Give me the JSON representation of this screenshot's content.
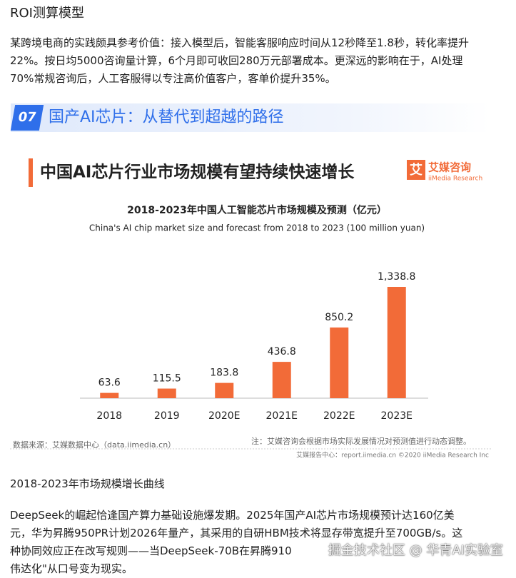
{
  "header": {
    "title": "ROI测算模型"
  },
  "paragraph1": {
    "lines": [
      "某跨境电商的实践颇具参考价值：接入模型后，智能客服响应时间从12秒降至1.8秒，转化率提升",
      "22%。按日均5000咨询量计算，6个月即可收回280万元部署成本。更深远的影响在于，AI处理",
      "70%常规咨询后，人工客服得以专注高价值客户，客单价提升35%。"
    ]
  },
  "section": {
    "number": "07",
    "title": "国产AI芯片：从替代到超越的路径"
  },
  "figure": {
    "headline": "中国AI芯片行业市场规模有望持续快速增长",
    "logo": "艾",
    "brand": "艾媒咨询",
    "brand_en": "iiMedia Research",
    "source": "数据来源：艾媒数据中心（data.iimedia.cn）",
    "note": "注：艾媒咨询会根据市场实际发展情况对预测值进行动态调整。",
    "footer": "艾媒报告中心：report.iimedia.cn   ©2020  iiMedia Research  Inc",
    "chart_data": {
      "type": "bar",
      "title": "2018-2023年中国人工智能芯片市场规模及预测（亿元）",
      "subtitle": "China's  AI chip market size and forecast from 2018 to 2023 (100 million yuan)",
      "categories": [
        "2018",
        "2019",
        "2020E",
        "2021E",
        "2022E",
        "2023E"
      ],
      "values": [
        63.6,
        115.5,
        183.8,
        436.8,
        850.2,
        1338.8
      ],
      "value_labels": [
        "63.6",
        "115.5",
        "183.8",
        "436.8",
        "850.2",
        "1,338.8"
      ],
      "color": "#f26b38"
    }
  },
  "caption": "2018-2023年市场规模增长曲线",
  "paragraph2": {
    "lines": [
      "DeepSeek的崛起恰逢国产算力基础设施爆发期。2025年国产AI芯片市场规模预计达160亿美",
      "元，华为昇腾950PR计划2026年量产，其采用的自研HBM技术将显存带宽提升至700GB/s。这",
      "种协同效应正在改写规则——当DeepSeek-70B在昇腾910",
      "伟达化\"从口号变为现实。"
    ]
  },
  "watermark": "掘金技术社区 @ 华青AI实验室"
}
